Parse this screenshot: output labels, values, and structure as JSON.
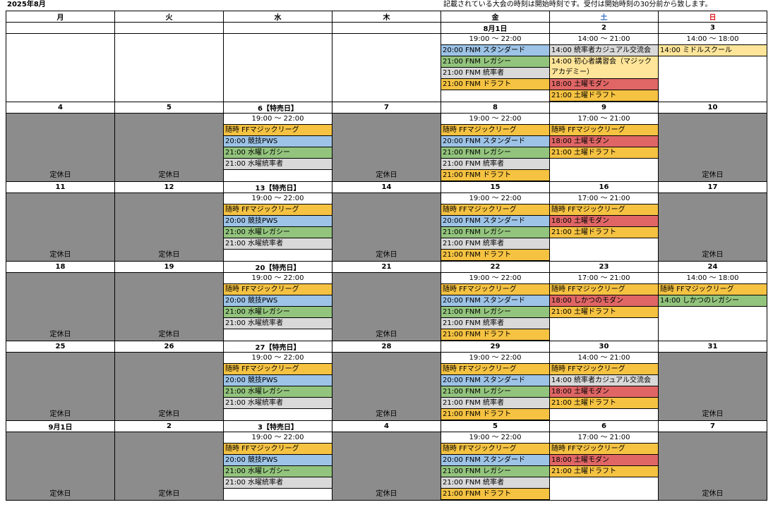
{
  "title": "2025年8月",
  "note": "記載されている大会の時刻は開始時刻です。受付は開始時刻の30分前から致します。",
  "weekdays": [
    "月",
    "火",
    "水",
    "木",
    "金",
    "土",
    "日"
  ],
  "closed_label": "定休日",
  "weeks": [
    {
      "days": [
        {
          "date": "",
          "closed": false,
          "events": []
        },
        {
          "date": "",
          "closed": false,
          "events": []
        },
        {
          "date": "",
          "closed": false,
          "events": []
        },
        {
          "date": "",
          "closed": false,
          "events": []
        },
        {
          "date": "8月1日",
          "closed": false,
          "events": [
            {
              "text": "19:00 〜 22:00",
              "color": "time"
            },
            {
              "text": "20:00 FNM スタンダード",
              "color": "blue"
            },
            {
              "text": "21:00 FNM レガシー",
              "color": "green"
            },
            {
              "text": "21:00 FNM 統率者",
              "color": "gray"
            },
            {
              "text": "21:00 FNM ドラフト",
              "color": "orange"
            }
          ]
        },
        {
          "date": "2",
          "closed": false,
          "events": [
            {
              "text": "14:00 〜 21:00",
              "color": "time"
            },
            {
              "text": "14:00 統率者カジュアル交流会",
              "color": "gray"
            },
            {
              "text": "14:00 初心者講習会（マジックアカデミー）",
              "color": "cream",
              "tall": true
            },
            {
              "text": "18:00 土曜モダン",
              "color": "red"
            },
            {
              "text": "21:00 土曜ドラフト",
              "color": "orange"
            }
          ]
        },
        {
          "date": "3",
          "closed": false,
          "events": [
            {
              "text": "14:00 〜 18:00",
              "color": "time"
            },
            {
              "text": "14:00 ミドルスクール",
              "color": "cream"
            }
          ]
        }
      ]
    },
    {
      "days": [
        {
          "date": "4",
          "closed": true,
          "events": []
        },
        {
          "date": "5",
          "closed": true,
          "events": []
        },
        {
          "date": "6【特売日】",
          "closed": false,
          "events": [
            {
              "text": "19:00 〜 22:00",
              "color": "time"
            },
            {
              "text": "随時 FFマジックリーグ",
              "color": "orange"
            },
            {
              "text": "20:00 競技PWS",
              "color": "blue"
            },
            {
              "text": "21:00 水曜レガシー",
              "color": "green"
            },
            {
              "text": "21:00 水曜統率者",
              "color": "gray"
            }
          ]
        },
        {
          "date": "7",
          "closed": true,
          "events": []
        },
        {
          "date": "8",
          "closed": false,
          "events": [
            {
              "text": "19:00 〜 22:00",
              "color": "time"
            },
            {
              "text": "随時 FFマジックリーグ",
              "color": "orange"
            },
            {
              "text": "20:00 FNM スタンダード",
              "color": "blue"
            },
            {
              "text": "21:00 FNM レガシー",
              "color": "green"
            },
            {
              "text": "21:00 FNM 統率者",
              "color": "gray"
            },
            {
              "text": "21:00 FNM ドラフト",
              "color": "orange"
            }
          ]
        },
        {
          "date": "9",
          "closed": false,
          "events": [
            {
              "text": "17:00 〜 21:00",
              "color": "time"
            },
            {
              "text": "随時 FFマジックリーグ",
              "color": "orange"
            },
            {
              "text": "18:00 土曜モダン",
              "color": "red"
            },
            {
              "text": "21:00 土曜ドラフト",
              "color": "orange"
            }
          ]
        },
        {
          "date": "10",
          "closed": true,
          "events": []
        }
      ]
    },
    {
      "days": [
        {
          "date": "11",
          "closed": true,
          "events": []
        },
        {
          "date": "12",
          "closed": true,
          "events": []
        },
        {
          "date": "13【特売日】",
          "closed": false,
          "events": [
            {
              "text": "19:00 〜 22:00",
              "color": "time"
            },
            {
              "text": "随時 FFマジックリーグ",
              "color": "orange"
            },
            {
              "text": "20:00 競技PWS",
              "color": "blue"
            },
            {
              "text": "21:00 水曜レガシー",
              "color": "green"
            },
            {
              "text": "21:00 水曜統率者",
              "color": "gray"
            }
          ]
        },
        {
          "date": "14",
          "closed": true,
          "events": []
        },
        {
          "date": "15",
          "closed": false,
          "events": [
            {
              "text": "19:00 〜 22:00",
              "color": "time"
            },
            {
              "text": "随時 FFマジックリーグ",
              "color": "orange"
            },
            {
              "text": "20:00 FNM スタンダード",
              "color": "blue"
            },
            {
              "text": "21:00 FNM レガシー",
              "color": "green"
            },
            {
              "text": "21:00 FNM 統率者",
              "color": "gray"
            },
            {
              "text": "21:00 FNM ドラフト",
              "color": "orange"
            }
          ]
        },
        {
          "date": "16",
          "closed": false,
          "events": [
            {
              "text": "17:00 〜 21:00",
              "color": "time"
            },
            {
              "text": "随時 FFマジックリーグ",
              "color": "orange"
            },
            {
              "text": "18:00 土曜モダン",
              "color": "red"
            },
            {
              "text": "21:00 土曜ドラフト",
              "color": "orange"
            }
          ]
        },
        {
          "date": "17",
          "closed": true,
          "events": []
        }
      ]
    },
    {
      "days": [
        {
          "date": "18",
          "closed": true,
          "events": []
        },
        {
          "date": "19",
          "closed": true,
          "events": []
        },
        {
          "date": "20【特売日】",
          "closed": false,
          "events": [
            {
              "text": "19:00 〜 22:00",
              "color": "time"
            },
            {
              "text": "随時 FFマジックリーグ",
              "color": "orange"
            },
            {
              "text": "20:00 競技PWS",
              "color": "blue"
            },
            {
              "text": "21:00 水曜レガシー",
              "color": "green"
            },
            {
              "text": "21:00 水曜統率者",
              "color": "gray"
            }
          ]
        },
        {
          "date": "21",
          "closed": true,
          "events": []
        },
        {
          "date": "22",
          "closed": false,
          "events": [
            {
              "text": "19:00 〜 22:00",
              "color": "time"
            },
            {
              "text": "随時 FFマジックリーグ",
              "color": "orange"
            },
            {
              "text": "20:00 FNM スタンダード",
              "color": "blue"
            },
            {
              "text": "21:00 FNM レガシー",
              "color": "green"
            },
            {
              "text": "21:00 FNM 統率者",
              "color": "gray"
            },
            {
              "text": "21:00 FNM ドラフト",
              "color": "orange"
            }
          ]
        },
        {
          "date": "23",
          "closed": false,
          "events": [
            {
              "text": "17:00 〜 21:00",
              "color": "time"
            },
            {
              "text": "随時 FFマジックリーグ",
              "color": "orange"
            },
            {
              "text": "18:00 しかつのモダン",
              "color": "red"
            },
            {
              "text": "21:00 土曜ドラフト",
              "color": "orange"
            }
          ]
        },
        {
          "date": "24",
          "closed": false,
          "events": [
            {
              "text": "14:00 〜 18:00",
              "color": "time"
            },
            {
              "text": "随時 FFマジックリーグ",
              "color": "orange"
            },
            {
              "text": "14:00 しかつのレガシー",
              "color": "green"
            }
          ]
        }
      ]
    },
    {
      "days": [
        {
          "date": "25",
          "closed": true,
          "events": []
        },
        {
          "date": "26",
          "closed": true,
          "events": []
        },
        {
          "date": "27【特売日】",
          "closed": false,
          "events": [
            {
              "text": "19:00 〜 22:00",
              "color": "time"
            },
            {
              "text": "随時 FFマジックリーグ",
              "color": "orange"
            },
            {
              "text": "20:00 競技PWS",
              "color": "blue"
            },
            {
              "text": "21:00 水曜レガシー",
              "color": "green"
            },
            {
              "text": "21:00 水曜統率者",
              "color": "gray"
            }
          ]
        },
        {
          "date": "28",
          "closed": true,
          "events": []
        },
        {
          "date": "29",
          "closed": false,
          "events": [
            {
              "text": "19:00 〜 22:00",
              "color": "time"
            },
            {
              "text": "随時 FFマジックリーグ",
              "color": "orange"
            },
            {
              "text": "20:00 FNM スタンダード",
              "color": "blue"
            },
            {
              "text": "21:00 FNM レガシー",
              "color": "green"
            },
            {
              "text": "21:00 FNM 統率者",
              "color": "gray"
            },
            {
              "text": "21:00 FNM ドラフト",
              "color": "orange"
            }
          ]
        },
        {
          "date": "30",
          "closed": false,
          "events": [
            {
              "text": "14:00 〜 21:00",
              "color": "time"
            },
            {
              "text": "随時 FFマジックリーグ",
              "color": "orange"
            },
            {
              "text": "14:00 統率者カジュアル交流会",
              "color": "gray"
            },
            {
              "text": "18:00 土曜モダン",
              "color": "red"
            },
            {
              "text": "21:00 土曜ドラフト",
              "color": "orange"
            }
          ]
        },
        {
          "date": "31",
          "closed": true,
          "events": []
        }
      ]
    },
    {
      "days": [
        {
          "date": "9月1日",
          "closed": true,
          "events": []
        },
        {
          "date": "2",
          "closed": true,
          "events": []
        },
        {
          "date": "3【特売日】",
          "closed": false,
          "events": [
            {
              "text": "19:00 〜 22:00",
              "color": "time"
            },
            {
              "text": "随時 FFマジックリーグ",
              "color": "orange"
            },
            {
              "text": "20:00 競技PWS",
              "color": "blue"
            },
            {
              "text": "21:00 水曜レガシー",
              "color": "green"
            },
            {
              "text": "21:00 水曜統率者",
              "color": "gray"
            }
          ]
        },
        {
          "date": "4",
          "closed": true,
          "events": []
        },
        {
          "date": "5",
          "closed": false,
          "events": [
            {
              "text": "19:00 〜 22:00",
              "color": "time"
            },
            {
              "text": "随時 FFマジックリーグ",
              "color": "orange"
            },
            {
              "text": "20:00 FNM スタンダード",
              "color": "blue"
            },
            {
              "text": "21:00 FNM レガシー",
              "color": "green"
            },
            {
              "text": "21:00 FNM 統率者",
              "color": "gray"
            },
            {
              "text": "21:00 FNM ドラフト",
              "color": "orange"
            }
          ]
        },
        {
          "date": "6",
          "closed": false,
          "events": [
            {
              "text": "17:00 〜 21:00",
              "color": "time"
            },
            {
              "text": "随時 FFマジックリーグ",
              "color": "orange"
            },
            {
              "text": "18:00 土曜モダン",
              "color": "red"
            },
            {
              "text": "21:00 土曜ドラフト",
              "color": "orange"
            }
          ]
        },
        {
          "date": "7",
          "closed": true,
          "events": []
        }
      ]
    }
  ]
}
